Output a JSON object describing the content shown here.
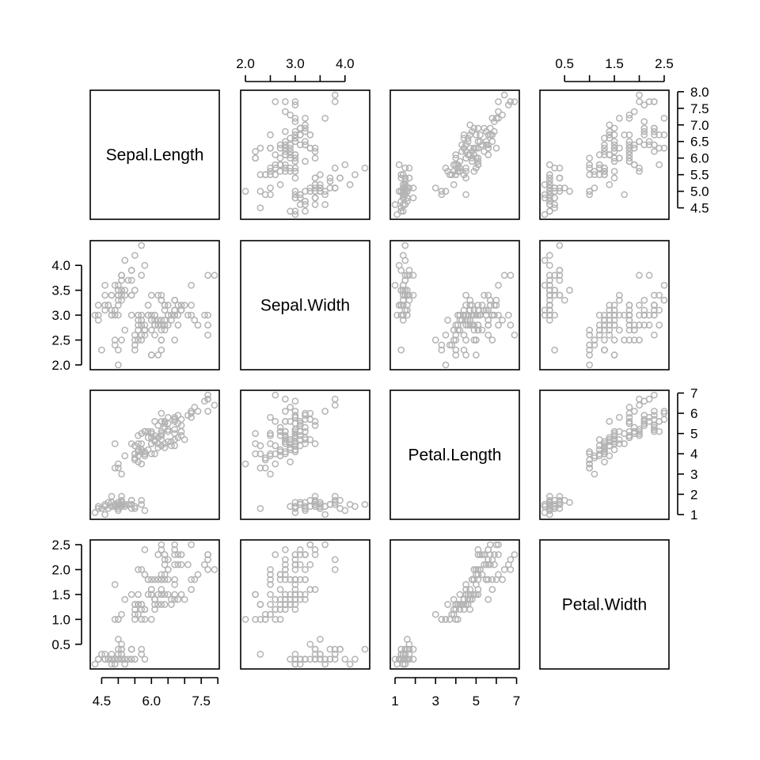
{
  "chart_data": {
    "type": "scatter",
    "layout": "scatterplot-matrix",
    "variables": [
      "Sepal.Length",
      "Sepal.Width",
      "Petal.Length",
      "Petal.Width"
    ],
    "ranges": [
      [
        4.3,
        7.9
      ],
      [
        2.0,
        4.4
      ],
      [
        1.0,
        6.9
      ],
      [
        0.1,
        2.5
      ]
    ],
    "ticks": [
      [
        4.5,
        5.0,
        5.5,
        6.0,
        6.5,
        7.0,
        7.5,
        8.0
      ],
      [
        2.0,
        2.5,
        3.0,
        3.5,
        4.0
      ],
      [
        1,
        2,
        3,
        4,
        5,
        6,
        7
      ],
      [
        0.5,
        1.0,
        1.5,
        2.0,
        2.5
      ]
    ],
    "tick_labels": {
      "top": {
        "column": 1,
        "ticks": [
          2.0,
          2.5,
          3.0,
          3.5,
          4.0
        ],
        "labels": [
          "2.0",
          "3.0",
          "4.0"
        ],
        "label_values": [
          2.0,
          3.0,
          4.0
        ]
      },
      "top2": {
        "column": 3,
        "ticks": [
          0.5,
          1.0,
          1.5,
          2.0,
          2.5
        ],
        "labels": [
          "0.5",
          "1.5",
          "2.5"
        ],
        "label_values": [
          0.5,
          1.5,
          2.5
        ]
      },
      "bottom": {
        "column": 0,
        "ticks": [
          4.5,
          5.0,
          5.5,
          6.0,
          6.5,
          7.0,
          7.5,
          8.0
        ],
        "labels": [
          "4.5",
          "6.0",
          "7.5"
        ],
        "label_values": [
          4.5,
          6.0,
          7.5
        ]
      },
      "bottom2": {
        "column": 2,
        "ticks": [
          1,
          2,
          3,
          4,
          5,
          6,
          7
        ],
        "labels": [
          "1",
          "3",
          "5",
          "7"
        ],
        "label_values": [
          1,
          3,
          5,
          7
        ]
      },
      "left": {
        "row": 1,
        "ticks": [
          2.0,
          2.5,
          3.0,
          3.5,
          4.0
        ],
        "labels": [
          "2.0",
          "2.5",
          "3.0",
          "3.5",
          "4.0"
        ],
        "label_values": [
          2.0,
          2.5,
          3.0,
          3.5,
          4.0
        ]
      },
      "left2": {
        "row": 3,
        "ticks": [
          0.5,
          1.0,
          1.5,
          2.0,
          2.5
        ],
        "labels": [
          "0.5",
          "1.0",
          "1.5",
          "2.0",
          "2.5"
        ],
        "label_values": [
          0.5,
          1.0,
          1.5,
          2.0,
          2.5
        ]
      },
      "right": {
        "row": 0,
        "ticks": [
          4.5,
          5.0,
          5.5,
          6.0,
          6.5,
          7.0,
          7.5,
          8.0
        ],
        "labels": [
          "4.5",
          "5.0",
          "5.5",
          "6.0",
          "6.5",
          "7.0",
          "7.5",
          "8.0"
        ],
        "label_values": [
          4.5,
          5.0,
          5.5,
          6.0,
          6.5,
          7.0,
          7.5,
          8.0
        ]
      },
      "right2": {
        "row": 2,
        "ticks": [
          1,
          2,
          3,
          4,
          5,
          6,
          7
        ],
        "labels": [
          "1",
          "2",
          "3",
          "4",
          "5",
          "6",
          "7"
        ],
        "label_values": [
          1,
          2,
          3,
          4,
          5,
          6,
          7
        ]
      }
    },
    "point_color": "#b3b3b3",
    "frame_color": "#000000",
    "grid": false,
    "legend": "none",
    "rows": [
      [
        5.1,
        3.5,
        1.4,
        0.2
      ],
      [
        4.9,
        3.0,
        1.4,
        0.2
      ],
      [
        4.7,
        3.2,
        1.3,
        0.2
      ],
      [
        4.6,
        3.1,
        1.5,
        0.2
      ],
      [
        5.0,
        3.6,
        1.4,
        0.2
      ],
      [
        5.4,
        3.9,
        1.7,
        0.4
      ],
      [
        4.6,
        3.4,
        1.4,
        0.3
      ],
      [
        5.0,
        3.4,
        1.5,
        0.2
      ],
      [
        4.4,
        2.9,
        1.4,
        0.2
      ],
      [
        4.9,
        3.1,
        1.5,
        0.1
      ],
      [
        5.4,
        3.7,
        1.5,
        0.2
      ],
      [
        4.8,
        3.4,
        1.6,
        0.2
      ],
      [
        4.8,
        3.0,
        1.4,
        0.1
      ],
      [
        4.3,
        3.0,
        1.1,
        0.1
      ],
      [
        5.8,
        4.0,
        1.2,
        0.2
      ],
      [
        5.7,
        4.4,
        1.5,
        0.4
      ],
      [
        5.4,
        3.9,
        1.3,
        0.4
      ],
      [
        5.1,
        3.5,
        1.4,
        0.3
      ],
      [
        5.7,
        3.8,
        1.7,
        0.3
      ],
      [
        5.1,
        3.8,
        1.5,
        0.3
      ],
      [
        5.4,
        3.4,
        1.7,
        0.2
      ],
      [
        5.1,
        3.7,
        1.5,
        0.4
      ],
      [
        4.6,
        3.6,
        1.0,
        0.2
      ],
      [
        5.1,
        3.3,
        1.7,
        0.5
      ],
      [
        4.8,
        3.4,
        1.9,
        0.2
      ],
      [
        5.0,
        3.0,
        1.6,
        0.2
      ],
      [
        5.0,
        3.4,
        1.6,
        0.4
      ],
      [
        5.2,
        3.5,
        1.5,
        0.2
      ],
      [
        5.2,
        3.4,
        1.4,
        0.2
      ],
      [
        4.7,
        3.2,
        1.6,
        0.2
      ],
      [
        4.8,
        3.1,
        1.6,
        0.2
      ],
      [
        5.4,
        3.4,
        1.5,
        0.4
      ],
      [
        5.2,
        4.1,
        1.5,
        0.1
      ],
      [
        5.5,
        4.2,
        1.4,
        0.2
      ],
      [
        4.9,
        3.1,
        1.5,
        0.2
      ],
      [
        5.0,
        3.2,
        1.2,
        0.2
      ],
      [
        5.5,
        3.5,
        1.3,
        0.2
      ],
      [
        4.9,
        3.6,
        1.4,
        0.1
      ],
      [
        4.4,
        3.0,
        1.3,
        0.2
      ],
      [
        5.1,
        3.4,
        1.5,
        0.2
      ],
      [
        5.0,
        3.5,
        1.3,
        0.3
      ],
      [
        4.5,
        2.3,
        1.3,
        0.3
      ],
      [
        4.4,
        3.2,
        1.3,
        0.2
      ],
      [
        5.0,
        3.5,
        1.6,
        0.6
      ],
      [
        5.1,
        3.8,
        1.9,
        0.4
      ],
      [
        4.8,
        3.0,
        1.4,
        0.3
      ],
      [
        5.1,
        3.8,
        1.6,
        0.2
      ],
      [
        4.6,
        3.2,
        1.4,
        0.2
      ],
      [
        5.3,
        3.7,
        1.5,
        0.2
      ],
      [
        5.0,
        3.3,
        1.4,
        0.2
      ],
      [
        7.0,
        3.2,
        4.7,
        1.4
      ],
      [
        6.4,
        3.2,
        4.5,
        1.5
      ],
      [
        6.9,
        3.1,
        4.9,
        1.5
      ],
      [
        5.5,
        2.3,
        4.0,
        1.3
      ],
      [
        6.5,
        2.8,
        4.6,
        1.5
      ],
      [
        5.7,
        2.8,
        4.5,
        1.3
      ],
      [
        6.3,
        3.3,
        4.7,
        1.6
      ],
      [
        4.9,
        2.4,
        3.3,
        1.0
      ],
      [
        6.6,
        2.9,
        4.6,
        1.3
      ],
      [
        5.2,
        2.7,
        3.9,
        1.4
      ],
      [
        5.0,
        2.0,
        3.5,
        1.0
      ],
      [
        5.9,
        3.0,
        4.2,
        1.5
      ],
      [
        6.0,
        2.2,
        4.0,
        1.0
      ],
      [
        6.1,
        2.9,
        4.7,
        1.4
      ],
      [
        5.6,
        2.9,
        3.6,
        1.3
      ],
      [
        6.7,
        3.1,
        4.4,
        1.4
      ],
      [
        5.6,
        3.0,
        4.5,
        1.5
      ],
      [
        5.8,
        2.7,
        4.1,
        1.0
      ],
      [
        6.2,
        2.2,
        4.5,
        1.5
      ],
      [
        5.6,
        2.5,
        3.9,
        1.1
      ],
      [
        5.9,
        3.2,
        4.8,
        1.8
      ],
      [
        6.1,
        2.8,
        4.0,
        1.3
      ],
      [
        6.3,
        2.5,
        4.9,
        1.5
      ],
      [
        6.1,
        2.8,
        4.7,
        1.2
      ],
      [
        6.4,
        2.9,
        4.3,
        1.3
      ],
      [
        6.6,
        3.0,
        4.4,
        1.4
      ],
      [
        6.8,
        2.8,
        4.8,
        1.4
      ],
      [
        6.7,
        3.0,
        5.0,
        1.7
      ],
      [
        6.0,
        2.9,
        4.5,
        1.5
      ],
      [
        5.7,
        2.6,
        3.5,
        1.0
      ],
      [
        5.5,
        2.4,
        3.8,
        1.1
      ],
      [
        5.5,
        2.4,
        3.7,
        1.0
      ],
      [
        5.8,
        2.7,
        3.9,
        1.2
      ],
      [
        6.0,
        2.7,
        5.1,
        1.6
      ],
      [
        5.4,
        3.0,
        4.5,
        1.5
      ],
      [
        6.0,
        3.4,
        4.5,
        1.6
      ],
      [
        6.7,
        3.1,
        4.7,
        1.5
      ],
      [
        6.3,
        2.3,
        4.4,
        1.3
      ],
      [
        5.6,
        3.0,
        4.1,
        1.3
      ],
      [
        5.5,
        2.5,
        4.0,
        1.3
      ],
      [
        5.5,
        2.6,
        4.4,
        1.2
      ],
      [
        6.1,
        3.0,
        4.6,
        1.4
      ],
      [
        5.8,
        2.6,
        4.0,
        1.2
      ],
      [
        5.0,
        2.3,
        3.3,
        1.0
      ],
      [
        5.6,
        2.7,
        4.2,
        1.3
      ],
      [
        5.7,
        3.0,
        4.2,
        1.2
      ],
      [
        5.7,
        2.9,
        4.2,
        1.3
      ],
      [
        6.2,
        2.9,
        4.3,
        1.3
      ],
      [
        5.1,
        2.5,
        3.0,
        1.1
      ],
      [
        5.7,
        2.8,
        4.1,
        1.3
      ],
      [
        6.3,
        3.3,
        6.0,
        2.5
      ],
      [
        5.8,
        2.7,
        5.1,
        1.9
      ],
      [
        7.1,
        3.0,
        5.9,
        2.1
      ],
      [
        6.3,
        2.9,
        5.6,
        1.8
      ],
      [
        6.5,
        3.0,
        5.8,
        2.2
      ],
      [
        7.6,
        3.0,
        6.6,
        2.1
      ],
      [
        4.9,
        2.5,
        4.5,
        1.7
      ],
      [
        7.3,
        2.9,
        6.3,
        1.8
      ],
      [
        6.7,
        2.5,
        5.8,
        1.8
      ],
      [
        7.2,
        3.6,
        6.1,
        2.5
      ],
      [
        6.5,
        3.2,
        5.1,
        2.0
      ],
      [
        6.4,
        2.7,
        5.3,
        1.9
      ],
      [
        6.8,
        3.0,
        5.5,
        2.1
      ],
      [
        5.7,
        2.5,
        5.0,
        2.0
      ],
      [
        5.8,
        2.8,
        5.1,
        2.4
      ],
      [
        6.4,
        3.2,
        5.3,
        2.3
      ],
      [
        6.5,
        3.0,
        5.5,
        1.8
      ],
      [
        7.7,
        3.8,
        6.7,
        2.2
      ],
      [
        7.7,
        2.6,
        6.9,
        2.3
      ],
      [
        6.0,
        2.2,
        5.0,
        1.5
      ],
      [
        6.9,
        3.2,
        5.7,
        2.3
      ],
      [
        5.6,
        2.8,
        4.9,
        2.0
      ],
      [
        7.7,
        2.8,
        6.7,
        2.0
      ],
      [
        6.3,
        2.7,
        4.9,
        1.8
      ],
      [
        6.7,
        3.3,
        5.7,
        2.1
      ],
      [
        7.2,
        3.2,
        6.0,
        1.8
      ],
      [
        6.2,
        2.8,
        4.8,
        1.8
      ],
      [
        6.1,
        3.0,
        4.9,
        1.8
      ],
      [
        6.4,
        2.8,
        5.6,
        2.1
      ],
      [
        7.2,
        3.0,
        5.8,
        1.6
      ],
      [
        7.4,
        2.8,
        6.1,
        1.9
      ],
      [
        7.9,
        3.8,
        6.4,
        2.0
      ],
      [
        6.4,
        2.8,
        5.6,
        2.2
      ],
      [
        6.3,
        2.8,
        5.1,
        1.5
      ],
      [
        6.1,
        2.6,
        5.6,
        1.4
      ],
      [
        7.7,
        3.0,
        6.1,
        2.3
      ],
      [
        6.3,
        3.4,
        5.6,
        2.4
      ],
      [
        6.4,
        3.1,
        5.5,
        1.8
      ],
      [
        6.0,
        3.0,
        4.8,
        1.8
      ],
      [
        6.9,
        3.1,
        5.4,
        2.1
      ],
      [
        6.7,
        3.1,
        5.6,
        2.4
      ],
      [
        6.9,
        3.1,
        5.1,
        2.3
      ],
      [
        5.8,
        2.7,
        5.1,
        1.9
      ],
      [
        6.8,
        3.2,
        5.9,
        2.3
      ],
      [
        6.7,
        3.3,
        5.7,
        2.5
      ],
      [
        6.7,
        3.0,
        5.2,
        2.3
      ],
      [
        6.3,
        2.5,
        5.0,
        1.9
      ],
      [
        6.5,
        3.0,
        5.2,
        2.0
      ],
      [
        6.2,
        3.4,
        5.4,
        2.3
      ],
      [
        5.9,
        3.0,
        5.1,
        1.8
      ]
    ]
  }
}
